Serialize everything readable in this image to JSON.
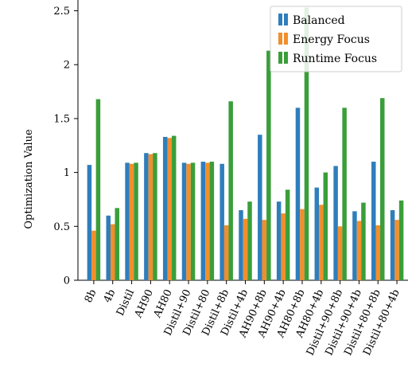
{
  "chart_data": {
    "type": "bar",
    "ylabel": "Optimization Value",
    "xlabel": "",
    "title": "",
    "ylim": [
      0,
      2.6
    ],
    "yticks": [
      0,
      0.5,
      1,
      1.5,
      2,
      2.5
    ],
    "ytick_labels": [
      "0",
      "0.5",
      "1",
      "1.5",
      "2",
      "2.5"
    ],
    "legend_position": "top-right",
    "categories": [
      "8b",
      "4b",
      "Distil",
      "AH90",
      "AH80",
      "Distil+90",
      "Distil+80",
      "Distil+8b",
      "Distil+4b",
      "AH90+8b",
      "AH90+4b",
      "AH80+8b",
      "AH80+4b",
      "Distil+90+8b",
      "Distil+90+4b",
      "Distil+80+8b",
      "Distil+80+4b"
    ],
    "series": [
      {
        "name": "Balanced",
        "color": "#2f7ebc",
        "values": [
          1.07,
          0.6,
          1.09,
          1.18,
          1.33,
          1.09,
          1.1,
          1.08,
          0.65,
          1.35,
          0.73,
          1.6,
          0.86,
          1.06,
          0.64,
          1.1,
          0.65
        ]
      },
      {
        "name": "Energy Focus",
        "color": "#f28e2b",
        "values": [
          0.46,
          0.52,
          1.08,
          1.17,
          1.32,
          1.08,
          1.09,
          0.51,
          0.57,
          0.56,
          0.62,
          0.66,
          0.7,
          0.5,
          0.55,
          0.51,
          0.56
        ]
      },
      {
        "name": "Runtime Focus",
        "color": "#3a9e3a",
        "values": [
          1.68,
          0.67,
          1.09,
          1.18,
          1.34,
          1.09,
          1.1,
          1.66,
          0.73,
          2.13,
          0.84,
          2.53,
          1.0,
          1.6,
          0.72,
          1.69,
          0.74
        ]
      }
    ]
  }
}
